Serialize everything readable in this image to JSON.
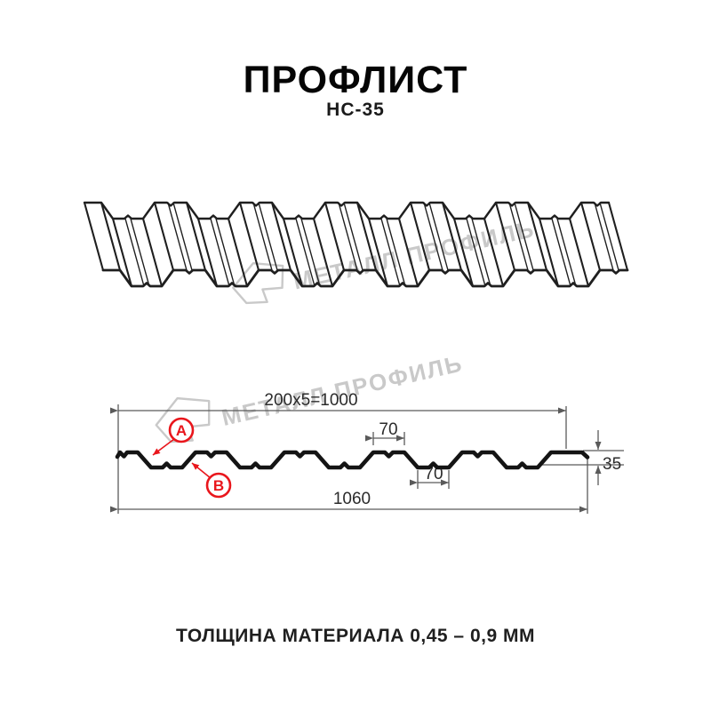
{
  "header": {
    "title": "ПРОФЛИСТ",
    "subtitle": "НС-35"
  },
  "watermark": {
    "text": "МЕТАЛЛ ПРОФИЛЬ"
  },
  "diagram": {
    "dims": {
      "pitch": "200x5=1000",
      "top_width": "70",
      "bottom_width": "70",
      "height": "35",
      "overall": "1060"
    },
    "markers": {
      "a": "A",
      "b": "B"
    }
  },
  "footer": {
    "note": "ТОЛЩИНА МАТЕРИАЛА 0,45 – 0,9 ММ"
  },
  "colors": {
    "line": "#1c1c1c",
    "dimension": "#5a5a5a",
    "accent_red": "#e9161c",
    "watermark": "#c9c9c9"
  }
}
